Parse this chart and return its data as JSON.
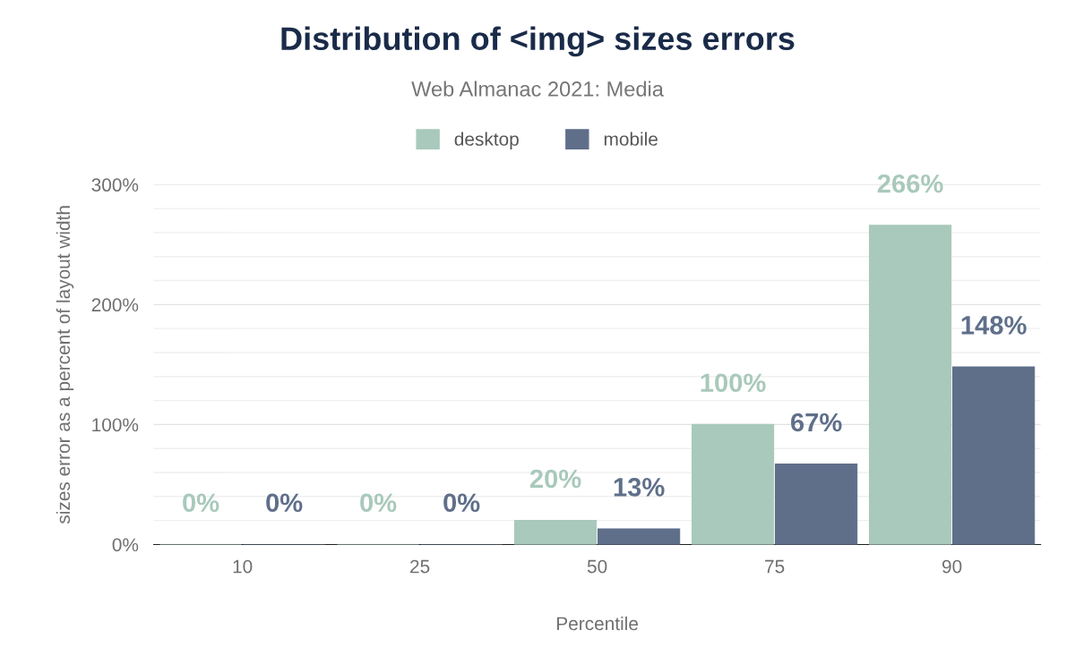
{
  "chart_data": {
    "type": "bar",
    "title": "Distribution of <img> sizes errors",
    "subtitle": "Web Almanac 2021: Media",
    "xlabel": "Percentile",
    "ylabel": "sizes error as a percent of layout width",
    "categories": [
      "10",
      "25",
      "50",
      "75",
      "90"
    ],
    "series": [
      {
        "name": "desktop",
        "color": "#a8c9bb",
        "values": [
          0,
          0,
          20,
          100,
          266
        ],
        "value_labels": [
          "0%",
          "0%",
          "20%",
          "100%",
          "266%"
        ]
      },
      {
        "name": "mobile",
        "color": "#5f6f8a",
        "values": [
          0,
          0,
          13,
          67,
          148
        ],
        "value_labels": [
          "0%",
          "0%",
          "13%",
          "67%",
          "148%"
        ]
      }
    ],
    "ylim": [
      0,
      300
    ],
    "yticks": [
      {
        "value": 0,
        "label": "0%"
      },
      {
        "value": 20,
        "label": null
      },
      {
        "value": 40,
        "label": null
      },
      {
        "value": 60,
        "label": null
      },
      {
        "value": 80,
        "label": null
      },
      {
        "value": 100,
        "label": "100%"
      },
      {
        "value": 120,
        "label": null
      },
      {
        "value": 140,
        "label": null
      },
      {
        "value": 160,
        "label": null
      },
      {
        "value": 180,
        "label": null
      },
      {
        "value": 200,
        "label": "200%"
      },
      {
        "value": 220,
        "label": null
      },
      {
        "value": 240,
        "label": null
      },
      {
        "value": 260,
        "label": null
      },
      {
        "value": 280,
        "label": null
      },
      {
        "value": 300,
        "label": "300%"
      }
    ],
    "grid": "y",
    "legend": "top"
  }
}
